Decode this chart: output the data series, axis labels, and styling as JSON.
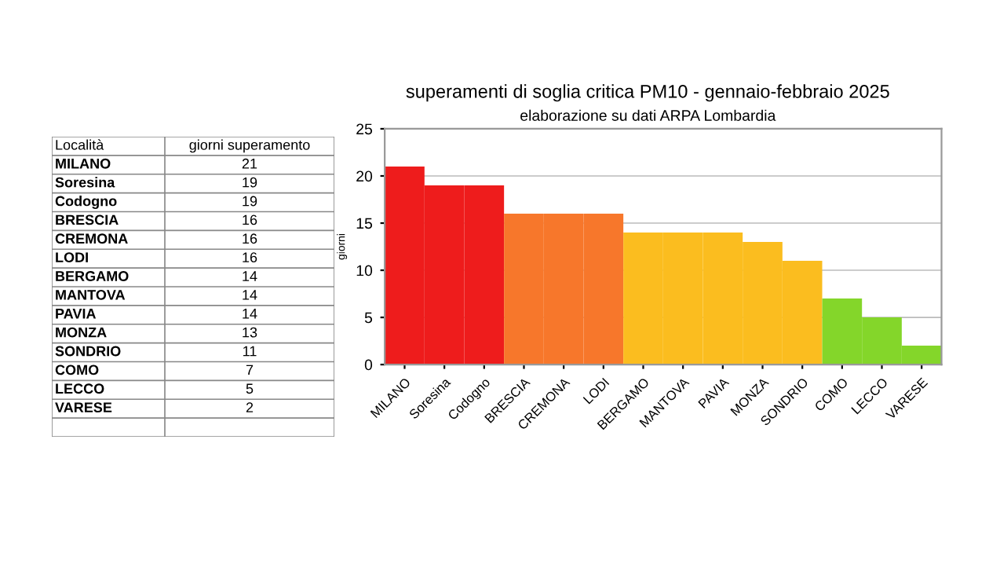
{
  "chart_data": [
    {
      "type": "other",
      "annotations": [
        "Località",
        "giorni superamento",
        "MILANO",
        "21",
        "Soresina",
        "19",
        "Codogno",
        "19",
        "BRESCIA",
        "16",
        "CREMONA",
        "16",
        "LODI",
        "16",
        "BERGAMO",
        "14",
        "MANTOVA",
        "14",
        "PAVIA",
        "14",
        "MONZA",
        "13",
        "SONDRIO",
        "11",
        "COMO",
        "7",
        "LECCO",
        "5",
        "VARESE",
        "2"
      ]
    },
    {
      "type": "bar",
      "title": "superamenti di soglia critica PM10 - gennaio-febbraio 2025",
      "subtitle": "elaborazione su dati ARPA Lombardia",
      "ylabel": "giorni",
      "categories": [
        "MILANO",
        "Soresina",
        "Codogno",
        "BRESCIA",
        "CREMONA",
        "LODI",
        "BERGAMO",
        "MANTOVA",
        "PAVIA",
        "MONZA",
        "SONDRIO",
        "COMO",
        "LECCO",
        "VARESE"
      ],
      "values": [
        21,
        19,
        19,
        16,
        16,
        16,
        14,
        14,
        14,
        13,
        11,
        7,
        5,
        2
      ],
      "colors": [
        "#ee1c1c",
        "#ee1c1c",
        "#ee1c1c",
        "#f7772b",
        "#f7772b",
        "#f7772b",
        "#fbbd1f",
        "#fbbd1f",
        "#fbbd1f",
        "#fbbd1f",
        "#fbbd1f",
        "#84d62a",
        "#84d62a",
        "#84d62a"
      ],
      "ylim": [
        0,
        25
      ],
      "yticks": [
        0,
        5,
        10,
        15,
        20,
        25
      ],
      "grid": "y"
    }
  ]
}
